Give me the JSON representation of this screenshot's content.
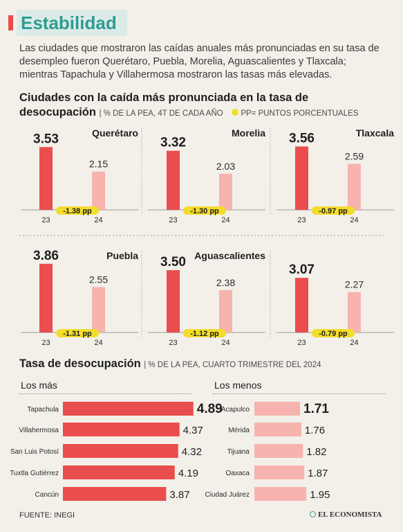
{
  "header": {
    "title": "Estabilidad"
  },
  "intro": "Las ciudades que mostraron las caídas anuales más pronunciadas en su tasa de desempleo fueron Querétaro, Puebla, Morelia, Aguascalientes y Tlaxcala; mientras Tapachula y Villahermosa mostraron las tasas más elevadas.",
  "section1": {
    "title_line1": "Ciudades con la caída más pronunciada en la tasa de",
    "title_line2": "desocupación",
    "note": "| % DE LA PEA, 4T DE CADA AÑO",
    "legend": "PP= PUNTOS PORCENTUALES"
  },
  "section2": {
    "title": "Tasa de desocupación",
    "note": "| % DE LA PEA, CUARTO TRIMESTRE DEL 2024",
    "left_head": "Los más",
    "right_head": "Los menos"
  },
  "footer": {
    "source": "FUENTE: INEGI",
    "brand": "EL ECONOMISTA"
  },
  "colors": {
    "dark_bar": "#ea4d4d",
    "light_bar": "#f7b3ae",
    "pill": "#f2dd2b",
    "accent": "#2e9c92"
  },
  "chart_data": [
    {
      "type": "bar",
      "title": "Querétaro",
      "categories": [
        "23",
        "24"
      ],
      "values": [
        3.53,
        2.15
      ],
      "annotation": "-1.38 pp",
      "ylim": [
        0,
        4
      ]
    },
    {
      "type": "bar",
      "title": "Morelia",
      "categories": [
        "23",
        "24"
      ],
      "values": [
        3.32,
        2.03
      ],
      "annotation": "-1.30 pp",
      "ylim": [
        0,
        4
      ]
    },
    {
      "type": "bar",
      "title": "Tlaxcala",
      "categories": [
        "23",
        "24"
      ],
      "values": [
        3.56,
        2.59
      ],
      "annotation": "-0.97 pp",
      "ylim": [
        0,
        4
      ]
    },
    {
      "type": "bar",
      "title": "Puebla",
      "categories": [
        "23",
        "24"
      ],
      "values": [
        3.86,
        2.55
      ],
      "annotation": "-1.31 pp",
      "ylim": [
        0,
        4
      ]
    },
    {
      "type": "bar",
      "title": "Aguascalientes",
      "categories": [
        "23",
        "24"
      ],
      "values": [
        3.5,
        2.38
      ],
      "annotation": "-1.12 pp",
      "ylim": [
        0,
        4
      ]
    },
    {
      "type": "bar",
      "title": "",
      "categories": [
        "23",
        "24"
      ],
      "values": [
        3.07,
        2.27
      ],
      "annotation": "-0.79 pp",
      "ylim": [
        0,
        4
      ]
    },
    {
      "type": "bar",
      "orientation": "horizontal",
      "title": "Los más",
      "categories": [
        "Tapachula",
        "Villahermosa",
        "San Luis Potosí",
        "Tuxtla Gutiérrez",
        "Cancún"
      ],
      "values": [
        4.89,
        4.37,
        4.32,
        4.19,
        3.87
      ]
    },
    {
      "type": "bar",
      "orientation": "horizontal",
      "title": "Los menos",
      "categories": [
        "Acapulco",
        "Mérida",
        "Tijuana",
        "Oaxaca",
        "Ciudad Juárez"
      ],
      "values": [
        1.71,
        1.76,
        1.82,
        1.87,
        1.95
      ]
    }
  ]
}
